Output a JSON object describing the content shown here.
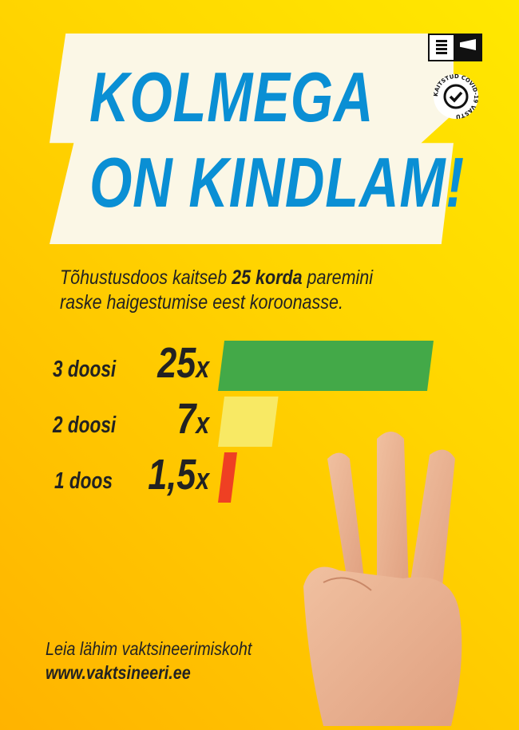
{
  "headline": {
    "line1": "KOLMEGA",
    "line2": "ON KINDLAM!"
  },
  "badge": {
    "text": "KAITSTUD COVID-19 VASTU"
  },
  "subtitle": {
    "pre": "Tõhustusdoos kaitseb ",
    "bold": "25 korda",
    "post": " paremini",
    "line2": "raske haigestumise eest koroonasse."
  },
  "chart_data": {
    "type": "bar",
    "orientation": "horizontal",
    "categories": [
      "3 doosi",
      "2 doosi",
      "1 doos"
    ],
    "values": [
      25,
      7,
      1.5
    ],
    "value_labels": [
      "25",
      "7",
      "1,5"
    ],
    "unit": "x",
    "colors": [
      "#43a948",
      "#f8e964",
      "#ef4023"
    ]
  },
  "footer": {
    "line1": "Leia lähim vaktsineerimiskoht",
    "url": "www.vaktsineeri.ee"
  }
}
